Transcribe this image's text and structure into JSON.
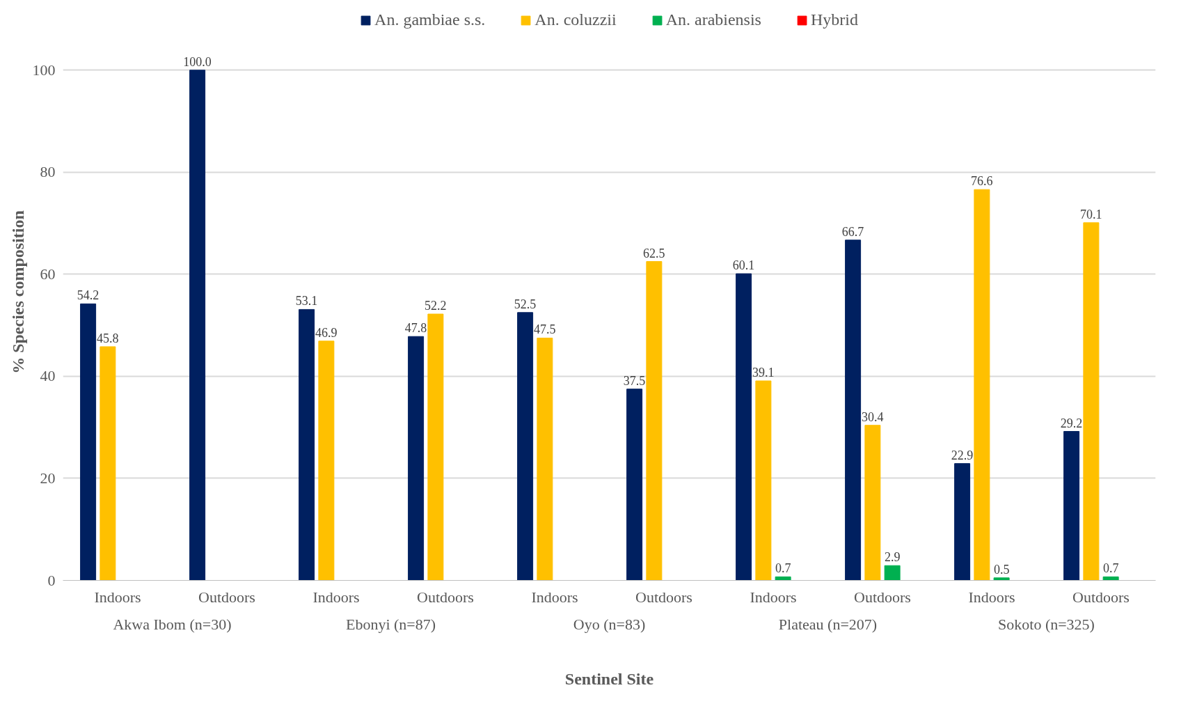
{
  "chart_data": {
    "type": "bar",
    "xlabel": "Sentinel Site",
    "ylabel": "% Species composition",
    "categories": [
      "Indoors",
      "Outdoors",
      "Indoors",
      "Outdoors",
      "Indoors",
      "Outdoors",
      "Indoors",
      "Outdoors",
      "Indoors",
      "Outdoors"
    ],
    "annotations": [
      "Akwa Ibom (n=30)",
      "Ebonyi (n=87)",
      "Oyo (n=83)",
      "Plateau (n=207)",
      "Sokoto (n=325)"
    ],
    "series": [
      {
        "name": "An. gambiae s.s.",
        "color": "#002060",
        "values": [
          54.2,
          100.0,
          53.1,
          47.8,
          52.5,
          37.5,
          60.1,
          66.7,
          22.9,
          29.2
        ],
        "value_labels": [
          "54.2",
          "100.0",
          "53.1",
          "47.8",
          "52.5",
          "37.5",
          "60.1",
          "66.7",
          "22.9",
          "29.2"
        ]
      },
      {
        "name": "An. coluzzii",
        "color": "#ffc000",
        "values": [
          45.8,
          null,
          46.9,
          52.2,
          47.5,
          62.5,
          39.1,
          30.4,
          76.6,
          70.1
        ],
        "value_labels": [
          "45.8",
          null,
          "46.9",
          "52.2",
          "47.5",
          "62.5",
          "39.1",
          "30.4",
          "76.6",
          "70.1"
        ]
      },
      {
        "name": "An. arabiensis",
        "color": "#00b050",
        "values": [
          null,
          null,
          null,
          null,
          null,
          null,
          0.7,
          2.9,
          0.5,
          0.7
        ],
        "value_labels": [
          null,
          null,
          null,
          null,
          null,
          null,
          "0.7",
          "2.9",
          "0.5",
          "0.7"
        ]
      },
      {
        "name": "Hybrid",
        "color": "#ff0000",
        "values": [
          null,
          null,
          null,
          null,
          null,
          null,
          null,
          null,
          null,
          null
        ]
      }
    ],
    "ylim": [
      0,
      100
    ],
    "yticks": [
      0,
      20,
      40,
      60,
      80,
      100
    ],
    "grid": "y",
    "legend": "top"
  }
}
